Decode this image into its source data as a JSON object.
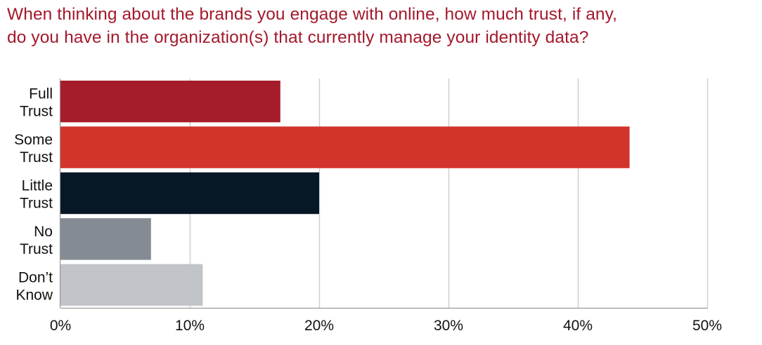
{
  "chart_data": {
    "type": "bar",
    "orientation": "horizontal",
    "title_lines": [
      "When thinking about the brands you engage with online, how much trust, if any,",
      "do you have in the organization(s) that currently manage your identity data?"
    ],
    "categories": [
      [
        "Full",
        "Trust"
      ],
      [
        "Some",
        "Trust"
      ],
      [
        "Little",
        "Trust"
      ],
      [
        "No",
        "Trust"
      ],
      [
        "Don’t",
        "Know"
      ]
    ],
    "values": [
      17,
      44,
      20,
      7,
      11
    ],
    "colors": [
      "#a51c2a",
      "#d2342c",
      "#061826",
      "#858b92",
      "#c1c5c9"
    ],
    "xlim": [
      0,
      50
    ],
    "xticks": [
      0,
      10,
      20,
      30,
      40,
      50
    ],
    "xtick_labels": [
      "0%",
      "10%",
      "20%",
      "30%",
      "40%",
      "50%"
    ],
    "grid": "vertical"
  }
}
